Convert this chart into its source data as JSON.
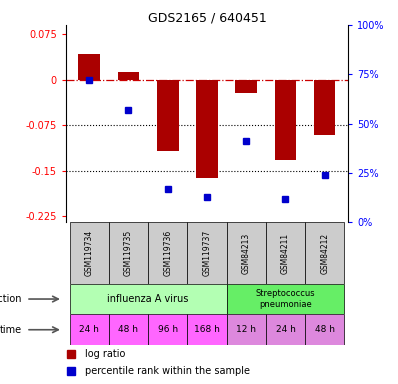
{
  "title": "GDS2165 / 640451",
  "samples": [
    "GSM119734",
    "GSM119735",
    "GSM119736",
    "GSM119737",
    "GSM84213",
    "GSM84211",
    "GSM84212"
  ],
  "log_ratio": [
    0.042,
    0.012,
    -0.118,
    -0.162,
    -0.022,
    -0.132,
    -0.092
  ],
  "percentile_rank": [
    72,
    57,
    17,
    13,
    41,
    12,
    24
  ],
  "ylim_left": [
    -0.235,
    0.09
  ],
  "yticks_left": [
    0.075,
    0,
    -0.075,
    -0.15,
    -0.225
  ],
  "yticks_right_pct": [
    100,
    75,
    50,
    25,
    0
  ],
  "dotted_line_1": -0.075,
  "dotted_line_2": -0.15,
  "flu_color": "#b3ffb3",
  "strep_color": "#66ee66",
  "time_colors": [
    "#ff66ff",
    "#ff66ff",
    "#ff66ff",
    "#ff66ff",
    "#dd88dd",
    "#dd88dd",
    "#dd88dd"
  ],
  "time_labels": [
    "24 h",
    "48 h",
    "96 h",
    "168 h",
    "12 h",
    "24 h",
    "48 h"
  ],
  "bar_color": "#aa0000",
  "dot_color": "#0000cc",
  "sample_box_color": "#cccccc",
  "bar_width": 0.55
}
